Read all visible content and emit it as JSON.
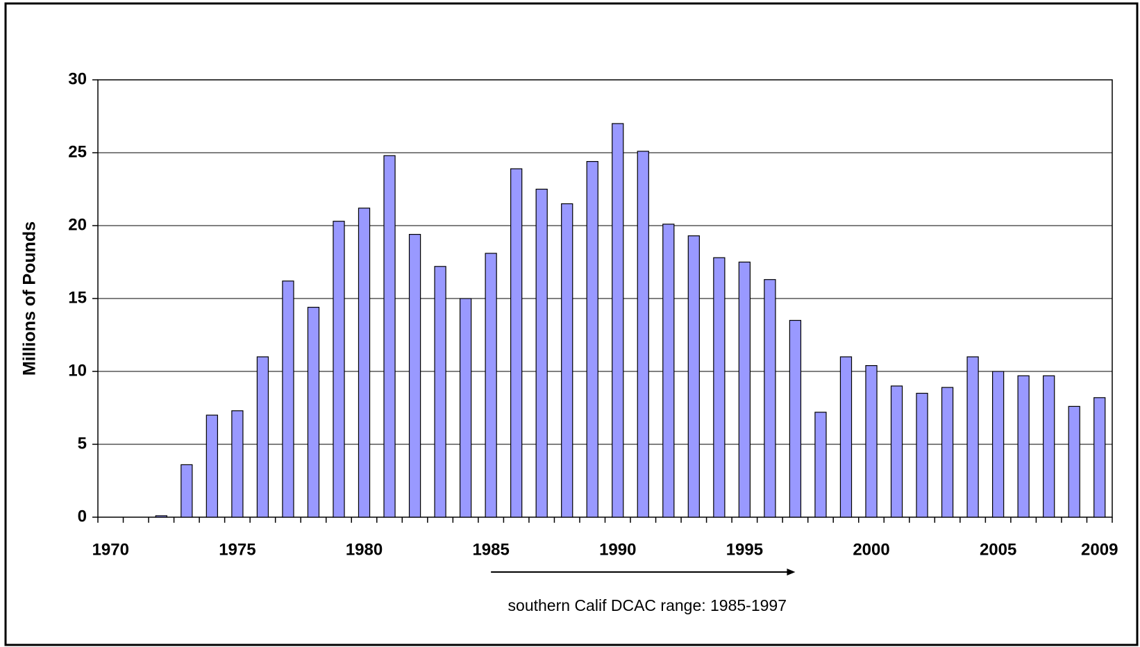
{
  "chart_data": {
    "type": "bar",
    "y_label": "Millions of Pounds",
    "annotation": "southern Calif DCAC range: 1985-1997",
    "categories": [
      "1970",
      null,
      null,
      null,
      null,
      "1975",
      null,
      null,
      null,
      null,
      "1980",
      null,
      null,
      null,
      null,
      "1985",
      null,
      null,
      null,
      null,
      "1990",
      null,
      null,
      null,
      null,
      "1995",
      null,
      null,
      null,
      null,
      "2000",
      null,
      null,
      null,
      null,
      "2005",
      null,
      null,
      null,
      "2009"
    ],
    "values": [
      0,
      0,
      0.1,
      3.6,
      7.0,
      7.3,
      11.0,
      16.2,
      14.4,
      20.3,
      21.2,
      24.8,
      19.4,
      17.2,
      15.0,
      18.1,
      23.9,
      22.5,
      21.5,
      24.4,
      27.0,
      25.1,
      20.1,
      19.3,
      17.8,
      17.5,
      16.3,
      13.5,
      7.2,
      11.0,
      10.4,
      9.0,
      8.5,
      8.9,
      11.0,
      10.0,
      9.7,
      9.7,
      7.6,
      8.2
    ],
    "color": "#9999ff",
    "ylim": [
      0,
      30
    ],
    "yticks": [
      0,
      5,
      10,
      15,
      20,
      25,
      30
    ],
    "grid": true
  }
}
